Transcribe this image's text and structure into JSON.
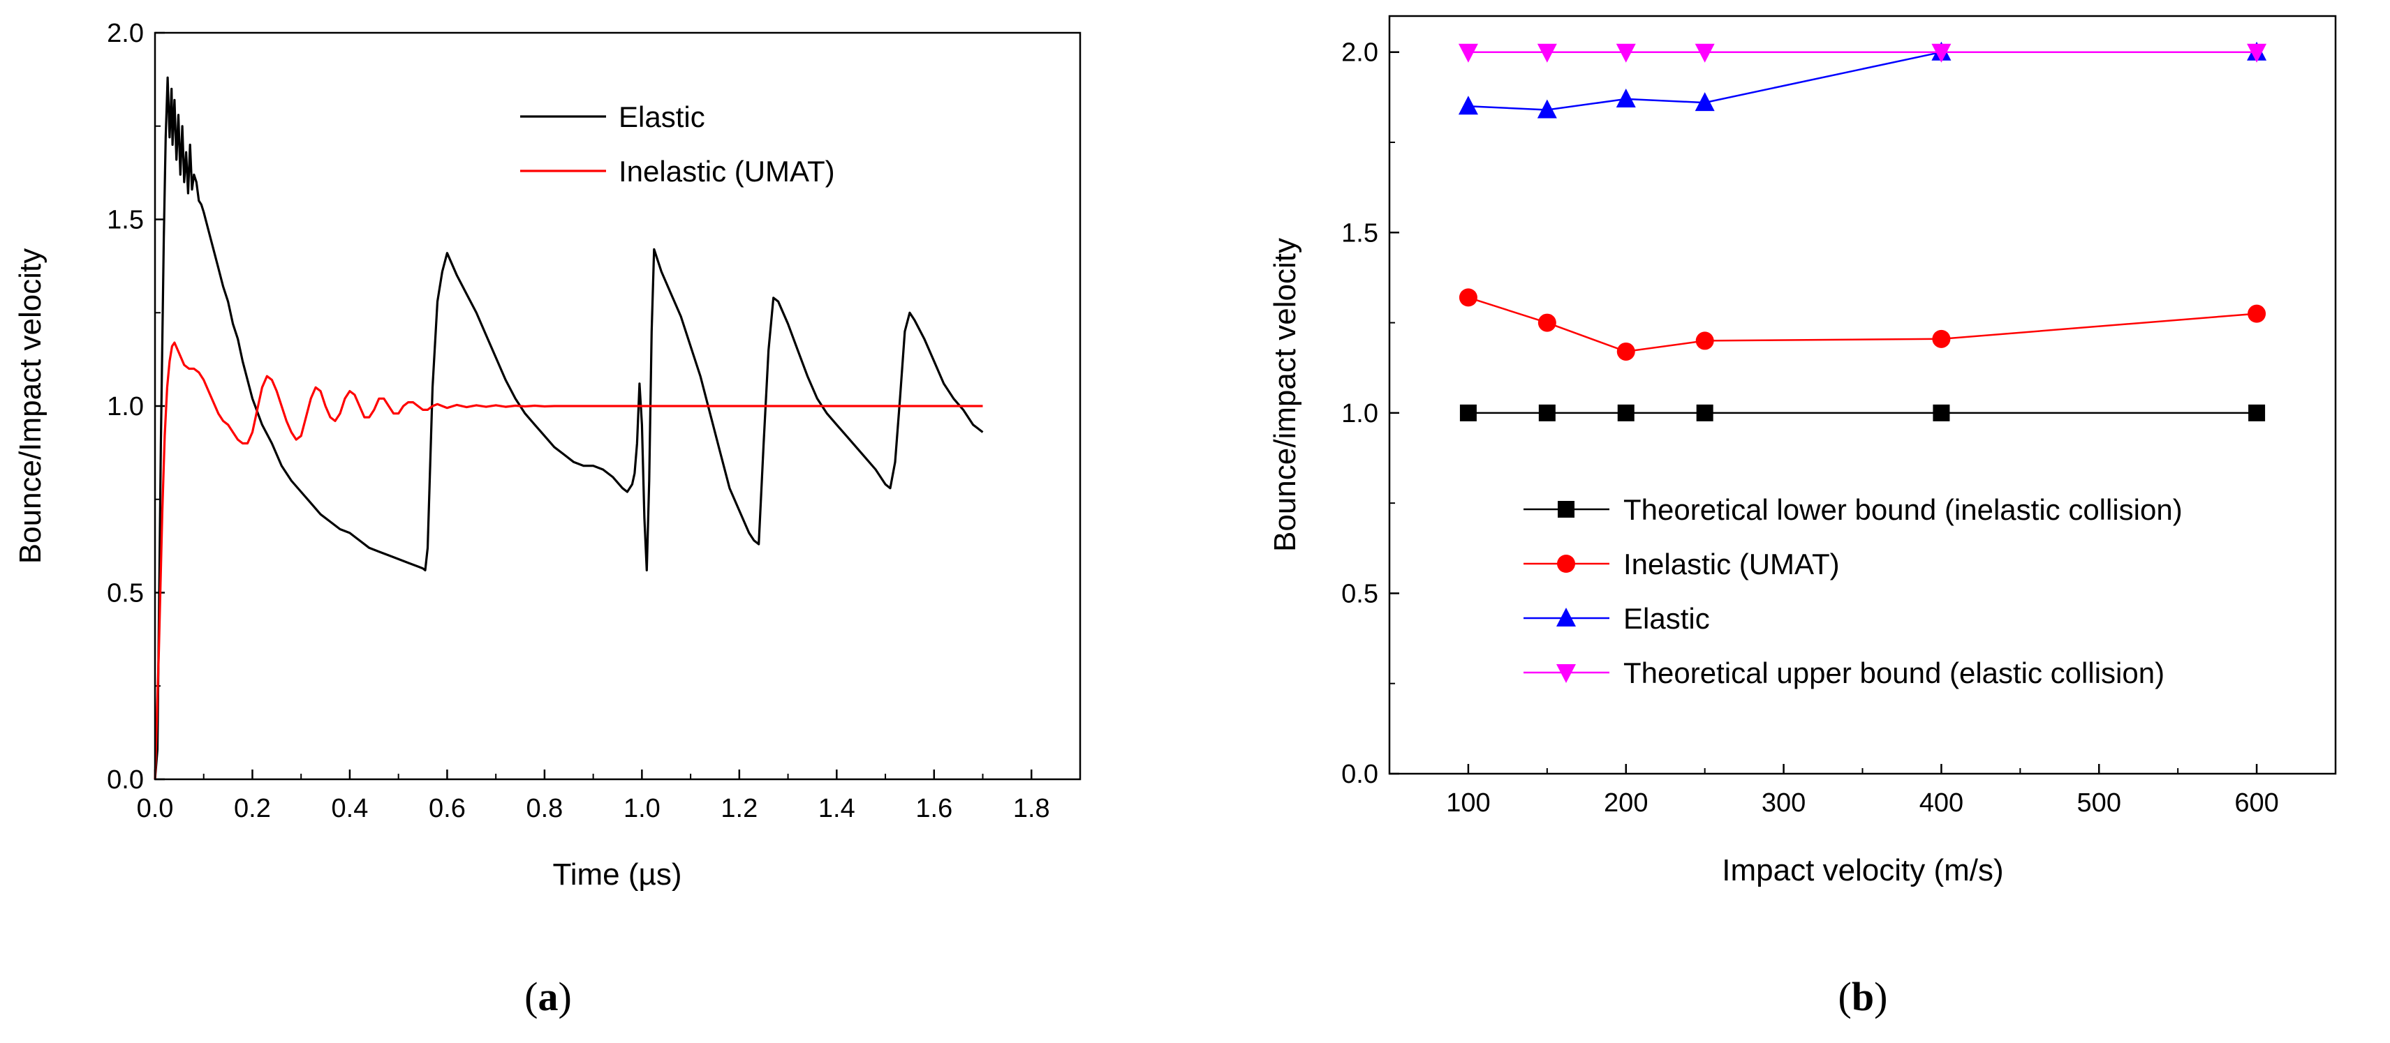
{
  "chart_data": [
    {
      "id": "a",
      "type": "line",
      "panel_label": "a",
      "xlabel": "Time (µs)",
      "ylabel": "Bounce/Impact velocity",
      "xlim": [
        0.0,
        1.9
      ],
      "ylim": [
        0.0,
        2.0
      ],
      "xticks": [
        "0.0",
        "0.2",
        "0.4",
        "0.6",
        "0.8",
        "1.0",
        "1.2",
        "1.4",
        "1.6",
        "1.8"
      ],
      "yticks": [
        "0.0",
        "0.5",
        "1.0",
        "1.5",
        "2.0"
      ],
      "legend_position": "top-center",
      "grid": false,
      "series": [
        {
          "name": "Elastic",
          "color": "#000000",
          "x": [
            0,
            0.005,
            0.012,
            0.018,
            0.022,
            0.026,
            0.03,
            0.034,
            0.036,
            0.04,
            0.044,
            0.048,
            0.052,
            0.056,
            0.06,
            0.064,
            0.068,
            0.072,
            0.076,
            0.08,
            0.085,
            0.09,
            0.095,
            0.1,
            0.11,
            0.12,
            0.13,
            0.14,
            0.15,
            0.16,
            0.17,
            0.18,
            0.2,
            0.22,
            0.24,
            0.26,
            0.28,
            0.3,
            0.32,
            0.34,
            0.36,
            0.38,
            0.4,
            0.42,
            0.44,
            0.46,
            0.48,
            0.5,
            0.52,
            0.54,
            0.55,
            0.555,
            0.56,
            0.57,
            0.58,
            0.59,
            0.6,
            0.61,
            0.62,
            0.64,
            0.66,
            0.68,
            0.7,
            0.72,
            0.74,
            0.76,
            0.78,
            0.8,
            0.82,
            0.84,
            0.86,
            0.88,
            0.9,
            0.92,
            0.94,
            0.96,
            0.97,
            0.98,
            0.985,
            0.99,
            0.995,
            1.0,
            1.005,
            1.01,
            1.015,
            1.02,
            1.025,
            1.03,
            1.04,
            1.06,
            1.08,
            1.1,
            1.12,
            1.14,
            1.16,
            1.18,
            1.2,
            1.22,
            1.23,
            1.24,
            1.25,
            1.26,
            1.27,
            1.28,
            1.3,
            1.32,
            1.34,
            1.36,
            1.38,
            1.4,
            1.42,
            1.44,
            1.46,
            1.48,
            1.5,
            1.51,
            1.52,
            1.53,
            1.54,
            1.55,
            1.56,
            1.58,
            1.6,
            1.62,
            1.64,
            1.66,
            1.68,
            1.69,
            1.7
          ],
          "y": [
            0,
            0.08,
            0.9,
            1.45,
            1.72,
            1.88,
            1.72,
            1.85,
            1.7,
            1.82,
            1.66,
            1.78,
            1.62,
            1.75,
            1.6,
            1.68,
            1.57,
            1.7,
            1.58,
            1.62,
            1.6,
            1.55,
            1.54,
            1.52,
            1.47,
            1.42,
            1.37,
            1.32,
            1.28,
            1.22,
            1.18,
            1.12,
            1.02,
            0.95,
            0.9,
            0.84,
            0.8,
            0.77,
            0.74,
            0.71,
            0.69,
            0.67,
            0.66,
            0.64,
            0.62,
            0.61,
            0.6,
            0.59,
            0.58,
            0.57,
            0.565,
            0.56,
            0.62,
            1.05,
            1.28,
            1.36,
            1.41,
            1.38,
            1.35,
            1.3,
            1.25,
            1.19,
            1.13,
            1.07,
            1.02,
            0.98,
            0.95,
            0.92,
            0.89,
            0.87,
            0.85,
            0.84,
            0.84,
            0.83,
            0.81,
            0.78,
            0.77,
            0.79,
            0.82,
            0.9,
            1.06,
            0.95,
            0.7,
            0.56,
            0.8,
            1.2,
            1.42,
            1.4,
            1.36,
            1.3,
            1.24,
            1.16,
            1.08,
            0.98,
            0.88,
            0.78,
            0.72,
            0.66,
            0.64,
            0.63,
            0.9,
            1.15,
            1.29,
            1.28,
            1.22,
            1.15,
            1.08,
            1.02,
            0.98,
            0.95,
            0.92,
            0.89,
            0.86,
            0.83,
            0.79,
            0.78,
            0.85,
            1.02,
            1.2,
            1.25,
            1.23,
            1.18,
            1.12,
            1.06,
            1.02,
            0.99,
            0.95,
            0.94,
            0.93
          ]
        },
        {
          "name": "Inelastic (UMAT)",
          "color": "#ff0000",
          "x": [
            0,
            0.008,
            0.015,
            0.02,
            0.025,
            0.03,
            0.035,
            0.04,
            0.05,
            0.06,
            0.07,
            0.08,
            0.09,
            0.1,
            0.11,
            0.12,
            0.13,
            0.14,
            0.15,
            0.16,
            0.17,
            0.18,
            0.19,
            0.2,
            0.21,
            0.22,
            0.23,
            0.24,
            0.25,
            0.26,
            0.27,
            0.28,
            0.29,
            0.3,
            0.31,
            0.32,
            0.33,
            0.34,
            0.35,
            0.36,
            0.37,
            0.38,
            0.39,
            0.4,
            0.41,
            0.42,
            0.43,
            0.44,
            0.45,
            0.46,
            0.47,
            0.48,
            0.49,
            0.5,
            0.51,
            0.52,
            0.53,
            0.54,
            0.55,
            0.56,
            0.57,
            0.58,
            0.59,
            0.6,
            0.62,
            0.64,
            0.66,
            0.68,
            0.7,
            0.72,
            0.74,
            0.76,
            0.78,
            0.8,
            0.82,
            0.84,
            0.86,
            0.88,
            0.9,
            0.92,
            0.94,
            0.96,
            0.98,
            1.0,
            1.1,
            1.2,
            1.3,
            1.4,
            1.5,
            1.6,
            1.7
          ],
          "y": [
            0,
            0.35,
            0.72,
            0.92,
            1.05,
            1.12,
            1.16,
            1.17,
            1.14,
            1.11,
            1.1,
            1.1,
            1.09,
            1.07,
            1.04,
            1.01,
            0.98,
            0.96,
            0.95,
            0.93,
            0.91,
            0.9,
            0.9,
            0.93,
            0.99,
            1.05,
            1.08,
            1.07,
            1.04,
            1.0,
            0.96,
            0.93,
            0.91,
            0.92,
            0.97,
            1.02,
            1.05,
            1.04,
            1.0,
            0.97,
            0.96,
            0.98,
            1.02,
            1.04,
            1.03,
            1.0,
            0.97,
            0.97,
            0.99,
            1.02,
            1.02,
            1.0,
            0.98,
            0.98,
            1.0,
            1.01,
            1.01,
            1.0,
            0.99,
            0.99,
            1.0,
            1.005,
            1.0,
            0.995,
            1.003,
            0.997,
            1.002,
            0.998,
            1.002,
            0.998,
            1.001,
            0.999,
            1.001,
            0.999,
            1.0,
            1.0,
            1.0,
            1.0,
            1.0,
            1.0,
            1.0,
            1.0,
            1.0,
            1.0,
            1.0,
            1.0,
            1.0,
            1.0,
            1.0,
            1.0,
            1.0
          ]
        }
      ]
    },
    {
      "id": "b",
      "type": "line",
      "panel_label": "b",
      "xlabel": "Impact velocity (m/s)",
      "ylabel": "Bounce/impact velocity",
      "xlim": [
        50,
        650
      ],
      "ylim": [
        0.0,
        2.1
      ],
      "xticks": [
        "100",
        "200",
        "300",
        "400",
        "500",
        "600"
      ],
      "yticks": [
        "0.0",
        "0.5",
        "1.0",
        "1.5",
        "2.0"
      ],
      "legend_position": "bottom-center",
      "grid": false,
      "series": [
        {
          "name": "Theoretical lower bound (inelastic collision)",
          "color": "#000000",
          "marker": "square",
          "x": [
            100,
            150,
            200,
            250,
            400,
            600
          ],
          "y": [
            1.0,
            1.0,
            1.0,
            1.0,
            1.0,
            1.0
          ]
        },
        {
          "name": "Inelastic (UMAT)",
          "color": "#ff0000",
          "marker": "circle",
          "x": [
            100,
            150,
            200,
            250,
            400,
            600
          ],
          "y": [
            1.32,
            1.25,
            1.17,
            1.2,
            1.205,
            1.275
          ]
        },
        {
          "name": "Elastic",
          "color": "#0000ff",
          "marker": "triangle-up",
          "x": [
            100,
            150,
            200,
            250,
            400,
            600
          ],
          "y": [
            1.85,
            1.84,
            1.87,
            1.86,
            2.0,
            2.0
          ]
        },
        {
          "name": "Theoretical upper bound (elastic collision)",
          "color": "#ff00ff",
          "marker": "triangle-down",
          "x": [
            100,
            150,
            200,
            250,
            400,
            600
          ],
          "y": [
            2.0,
            2.0,
            2.0,
            2.0,
            2.0,
            2.0
          ]
        }
      ]
    }
  ]
}
